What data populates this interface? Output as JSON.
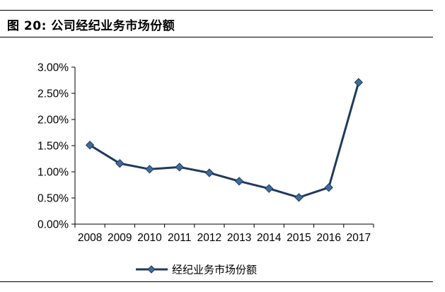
{
  "caption": {
    "figure_label": "图 20:",
    "title": "公司经纪业务市场份额"
  },
  "chart_data": {
    "type": "line",
    "title": "公司经纪业务市场份额",
    "xlabel": "",
    "ylabel": "",
    "categories": [
      "2008",
      "2009",
      "2010",
      "2011",
      "2012",
      "2013",
      "2014",
      "2015",
      "2016",
      "2017"
    ],
    "series": [
      {
        "name": "经纪业务市场份额",
        "values": [
          1.51,
          1.16,
          1.05,
          1.09,
          0.98,
          0.82,
          0.68,
          0.51,
          0.7,
          2.71
        ],
        "color": "#1f3a5c",
        "marker_color": "#3e6d9c",
        "marker": "diamond"
      }
    ],
    "ylim": [
      0,
      3
    ],
    "yticks": [
      0,
      0.5,
      1.0,
      1.5,
      2.0,
      2.5,
      3.0
    ],
    "ytick_labels": [
      "0.00%",
      "0.50%",
      "1.00%",
      "1.50%",
      "2.00%",
      "2.50%",
      "3.00%"
    ],
    "y_unit": "%",
    "grid": false,
    "legend_position": "bottom"
  }
}
